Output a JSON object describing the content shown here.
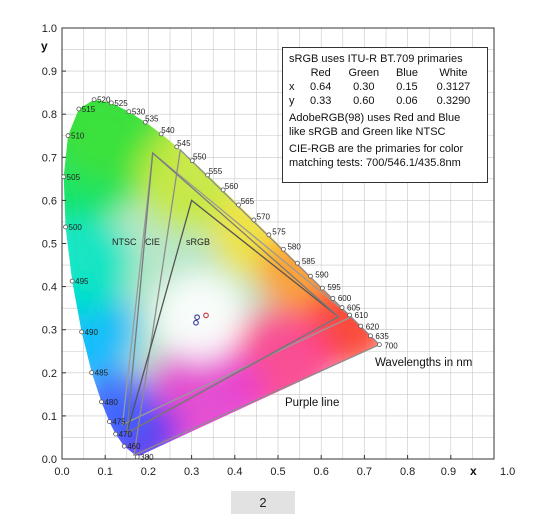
{
  "chart_data": {
    "type": "scatter",
    "xlabel": "x",
    "ylabel": "y",
    "xlim": [
      0.0,
      1.0
    ],
    "ylim": [
      0.0,
      1.0
    ],
    "x_ticks": [
      "0.0",
      "0.1",
      "0.2",
      "0.3",
      "0.4",
      "0.5",
      "0.6",
      "0.7",
      "0.8",
      "0.9",
      "1.0"
    ],
    "y_ticks": [
      "0.0",
      "0.1",
      "0.2",
      "0.3",
      "0.4",
      "0.5",
      "0.6",
      "0.7",
      "0.8",
      "0.9",
      "1.0"
    ],
    "grid": true,
    "spectral_locus": [
      {
        "nm": "380",
        "x": 0.1741,
        "y": 0.005
      },
      {
        "nm": "460",
        "x": 0.144,
        "y": 0.0297
      },
      {
        "nm": "470",
        "x": 0.1241,
        "y": 0.0578
      },
      {
        "nm": "475",
        "x": 0.1096,
        "y": 0.0868
      },
      {
        "nm": "480",
        "x": 0.0913,
        "y": 0.1327
      },
      {
        "nm": "485",
        "x": 0.0687,
        "y": 0.2007
      },
      {
        "nm": "490",
        "x": 0.0454,
        "y": 0.295
      },
      {
        "nm": "495",
        "x": 0.0235,
        "y": 0.4127
      },
      {
        "nm": "500",
        "x": 0.0082,
        "y": 0.5384
      },
      {
        "nm": "505",
        "x": 0.0039,
        "y": 0.6548
      },
      {
        "nm": "510",
        "x": 0.0139,
        "y": 0.7502
      },
      {
        "nm": "515",
        "x": 0.0389,
        "y": 0.812
      },
      {
        "nm": "520",
        "x": 0.0743,
        "y": 0.8338
      },
      {
        "nm": "525",
        "x": 0.1142,
        "y": 0.8262
      },
      {
        "nm": "530",
        "x": 0.1547,
        "y": 0.8059
      },
      {
        "nm": "535",
        "x": 0.1929,
        "y": 0.7816
      },
      {
        "nm": "540",
        "x": 0.2296,
        "y": 0.7543
      },
      {
        "nm": "545",
        "x": 0.2658,
        "y": 0.7243
      },
      {
        "nm": "550",
        "x": 0.3016,
        "y": 0.6923
      },
      {
        "nm": "555",
        "x": 0.3373,
        "y": 0.6589
      },
      {
        "nm": "560",
        "x": 0.3731,
        "y": 0.6245
      },
      {
        "nm": "565",
        "x": 0.4087,
        "y": 0.5896
      },
      {
        "nm": "570",
        "x": 0.4441,
        "y": 0.5547
      },
      {
        "nm": "575",
        "x": 0.4788,
        "y": 0.5202
      },
      {
        "nm": "580",
        "x": 0.5125,
        "y": 0.4866
      },
      {
        "nm": "585",
        "x": 0.5448,
        "y": 0.4544
      },
      {
        "nm": "590",
        "x": 0.5752,
        "y": 0.4242
      },
      {
        "nm": "595",
        "x": 0.6029,
        "y": 0.3965
      },
      {
        "nm": "600",
        "x": 0.627,
        "y": 0.3725
      },
      {
        "nm": "605",
        "x": 0.6482,
        "y": 0.3514
      },
      {
        "nm": "610",
        "x": 0.6658,
        "y": 0.334
      },
      {
        "nm": "620",
        "x": 0.6915,
        "y": 0.3083
      },
      {
        "nm": "635",
        "x": 0.714,
        "y": 0.2859
      },
      {
        "nm": "700",
        "x": 0.7347,
        "y": 0.2653
      }
    ],
    "series": [
      {
        "name": "NTSC",
        "points": [
          [
            0.67,
            0.33
          ],
          [
            0.21,
            0.71
          ],
          [
            0.14,
            0.08
          ]
        ],
        "color": "#9a9a9a"
      },
      {
        "name": "CIE",
        "points": [
          [
            0.7347,
            0.2653
          ],
          [
            0.2738,
            0.7174
          ],
          [
            0.1666,
            0.0089
          ]
        ],
        "color": "#8c8c8c"
      },
      {
        "name": "sRGB",
        "points": [
          [
            0.64,
            0.33
          ],
          [
            0.3,
            0.6
          ],
          [
            0.15,
            0.06
          ]
        ],
        "color": "#555555"
      },
      {
        "name": "AdobeRGB(98)",
        "points": [
          [
            0.64,
            0.33
          ],
          [
            0.21,
            0.71
          ],
          [
            0.15,
            0.06
          ]
        ],
        "color": "#7a7a7a"
      }
    ],
    "white_points": [
      {
        "x": 0.3127,
        "y": 0.329,
        "color": "#3a3a9a"
      },
      {
        "x": 0.3101,
        "y": 0.3162,
        "color": "#3a3a9a"
      },
      {
        "x": 0.3333,
        "y": 0.3333,
        "color": "#cc3333"
      }
    ],
    "labels": {
      "ntsc": "NTSC",
      "cie": "CIE",
      "srgb": "sRGB",
      "wavelengths": "Wavelengths in nm",
      "purple_line": "Purple line"
    }
  },
  "info_box": {
    "line1": "sRGB uses ITU-R BT.709 primaries",
    "header": [
      "",
      "Red",
      "Green",
      "Blue",
      "White"
    ],
    "row_x": [
      "x",
      "0.64",
      "0.30",
      "0.15",
      "0.3127"
    ],
    "row_y": [
      "y",
      "0.33",
      "0.60",
      "0.06",
      "0.3290"
    ],
    "line4": "AdobeRGB(98) uses Red and Blue",
    "line5": "like sRGB and Green like NTSC",
    "line6": "CIE-RGB are the primaries for color",
    "line7": "matching tests: 700/546.1/435.8nm"
  },
  "page_indicator": "2"
}
